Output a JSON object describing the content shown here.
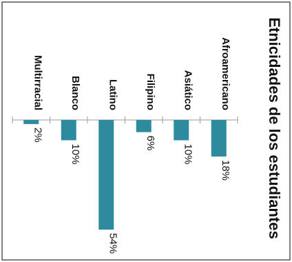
{
  "chart_data": {
    "type": "bar",
    "orientation": "rotated-90-clockwise",
    "title": "Etnicidades de los estudiantes",
    "categories": [
      "Afroamericano",
      "Asiático",
      "Filipino",
      "Latino",
      "Blanco",
      "Multirracial"
    ],
    "values": [
      18,
      10,
      6,
      54,
      10,
      2
    ],
    "value_suffix": "%",
    "ylim": [
      0,
      54
    ],
    "grid": false,
    "legend": "none",
    "bar_color": "#2e8b9e"
  }
}
